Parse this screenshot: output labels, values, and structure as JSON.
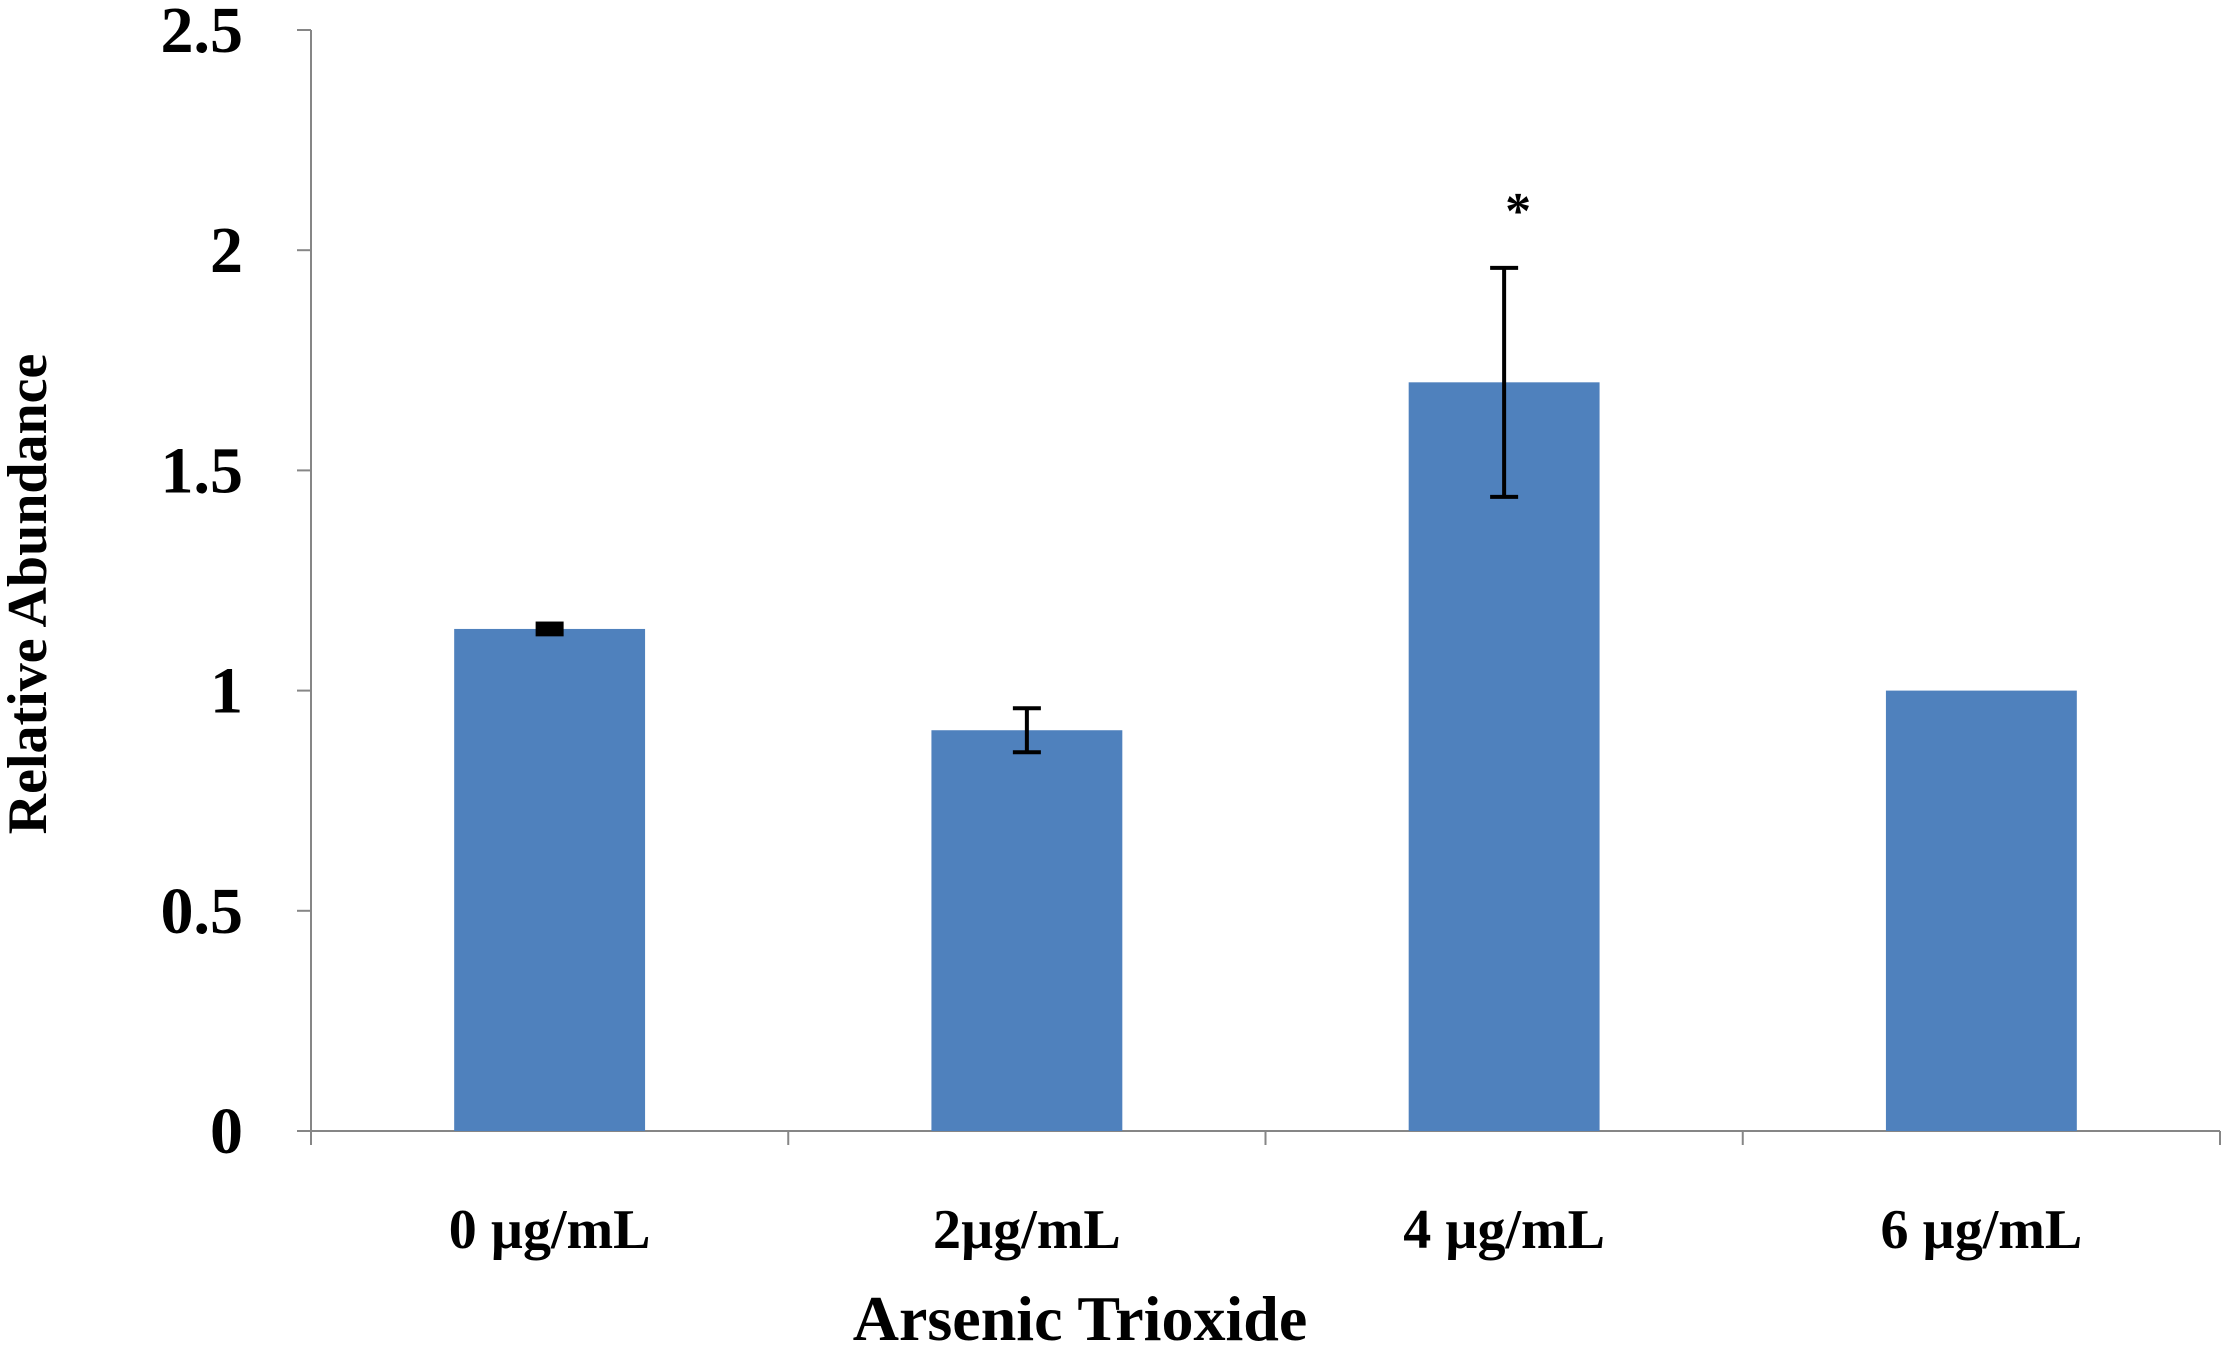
{
  "chart_data": {
    "type": "bar",
    "title": "",
    "xlabel": "Arsenic Trioxide",
    "ylabel": "Relative Abundance",
    "ylim": [
      0,
      2.5
    ],
    "yticks": [
      0,
      0.5,
      1,
      1.5,
      2,
      2.5
    ],
    "ytick_labels": [
      "0",
      "0.5",
      "1",
      "1.5",
      "2",
      "2.5"
    ],
    "categories": [
      "0 µg/mL",
      "2µg/mL",
      "4 µg/mL",
      "6 µg/mL"
    ],
    "values": [
      1.14,
      0.91,
      1.7,
      1.0
    ],
    "error_bars": [
      0.01,
      0.05,
      0.26,
      0
    ],
    "annotations": [
      {
        "category_index": 2,
        "text": "*"
      }
    ],
    "bar_color": "#4f81bd",
    "grid": false,
    "legend": "none"
  }
}
